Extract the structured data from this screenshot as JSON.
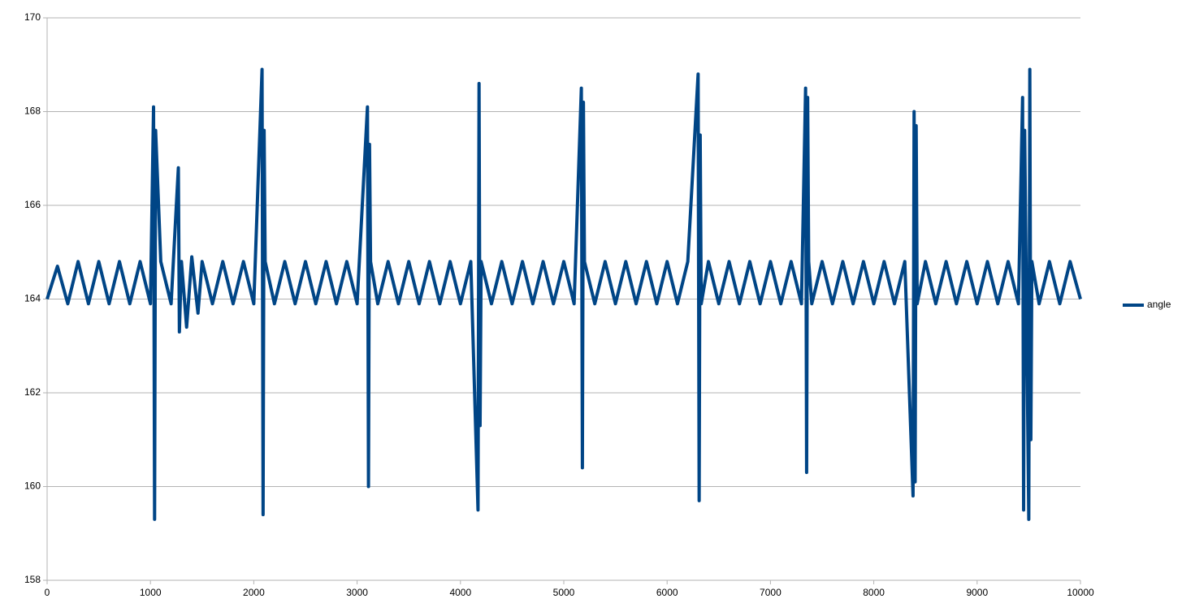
{
  "chart_data": {
    "type": "line",
    "x": [
      0,
      100,
      200,
      300,
      400,
      500,
      600,
      700,
      800,
      900,
      1000,
      1030,
      1040,
      1050,
      1100,
      1200,
      1270,
      1280,
      1300,
      1350,
      1400,
      1460,
      1500,
      1600,
      1700,
      1800,
      1900,
      2000,
      2080,
      2090,
      2100,
      2110,
      2200,
      2300,
      2400,
      2500,
      2600,
      2700,
      2800,
      2900,
      3000,
      3100,
      3110,
      3120,
      3130,
      3200,
      3300,
      3400,
      3500,
      3600,
      3700,
      3800,
      3900,
      4000,
      4100,
      4170,
      4180,
      4190,
      4200,
      4300,
      4400,
      4500,
      4600,
      4700,
      4800,
      4900,
      5000,
      5100,
      5170,
      5180,
      5190,
      5200,
      5300,
      5400,
      5500,
      5600,
      5700,
      5800,
      5900,
      6000,
      6100,
      6200,
      6300,
      6310,
      6320,
      6330,
      6400,
      6500,
      6600,
      6700,
      6800,
      6900,
      7000,
      7100,
      7200,
      7300,
      7340,
      7350,
      7360,
      7370,
      7400,
      7500,
      7600,
      7700,
      7800,
      7900,
      8000,
      8100,
      8200,
      8300,
      8380,
      8390,
      8400,
      8410,
      8420,
      8500,
      8600,
      8700,
      8800,
      8900,
      9000,
      9100,
      9200,
      9300,
      9400,
      9440,
      9450,
      9460,
      9500,
      9510,
      9520,
      9530,
      9600,
      9700,
      9800,
      9900,
      10000
    ],
    "series": [
      {
        "name": "angle",
        "color": "#004586",
        "values": [
          164.0,
          164.7,
          163.9,
          164.8,
          163.9,
          164.8,
          163.9,
          164.8,
          163.9,
          164.8,
          163.9,
          168.1,
          159.3,
          167.6,
          164.8,
          163.9,
          166.8,
          163.3,
          164.8,
          163.4,
          164.9,
          163.7,
          164.8,
          163.9,
          164.8,
          163.9,
          164.8,
          163.9,
          168.9,
          159.4,
          167.6,
          164.8,
          163.9,
          164.8,
          163.9,
          164.8,
          163.9,
          164.8,
          163.9,
          164.8,
          163.9,
          168.1,
          160.0,
          167.3,
          164.8,
          163.9,
          164.8,
          163.9,
          164.8,
          163.9,
          164.8,
          163.9,
          164.8,
          163.9,
          164.8,
          159.5,
          168.6,
          161.3,
          164.8,
          163.9,
          164.8,
          163.9,
          164.8,
          163.9,
          164.8,
          163.9,
          164.8,
          163.9,
          168.5,
          160.4,
          168.2,
          164.8,
          163.9,
          164.8,
          163.9,
          164.8,
          163.9,
          164.8,
          163.9,
          164.8,
          163.9,
          164.8,
          168.8,
          159.7,
          167.5,
          163.9,
          164.8,
          163.9,
          164.8,
          163.9,
          164.8,
          163.9,
          164.8,
          163.9,
          164.8,
          163.9,
          168.5,
          160.3,
          168.3,
          164.8,
          163.9,
          164.8,
          163.9,
          164.8,
          163.9,
          164.8,
          163.9,
          164.8,
          163.9,
          164.8,
          159.8,
          168.0,
          160.1,
          167.7,
          163.9,
          164.8,
          163.9,
          164.8,
          163.9,
          164.8,
          163.9,
          164.8,
          163.9,
          164.8,
          163.9,
          168.3,
          159.5,
          167.6,
          159.3,
          168.9,
          161.0,
          164.8,
          163.9,
          164.8,
          163.9,
          164.8,
          164.0
        ]
      }
    ],
    "xlim": [
      0,
      10000
    ],
    "xticks": [
      0,
      1000,
      2000,
      3000,
      4000,
      5000,
      6000,
      7000,
      8000,
      9000,
      10000
    ],
    "ylim": [
      158,
      170
    ],
    "yticks": [
      158,
      160,
      162,
      164,
      166,
      168,
      170
    ],
    "grid": true,
    "legend": "right"
  }
}
